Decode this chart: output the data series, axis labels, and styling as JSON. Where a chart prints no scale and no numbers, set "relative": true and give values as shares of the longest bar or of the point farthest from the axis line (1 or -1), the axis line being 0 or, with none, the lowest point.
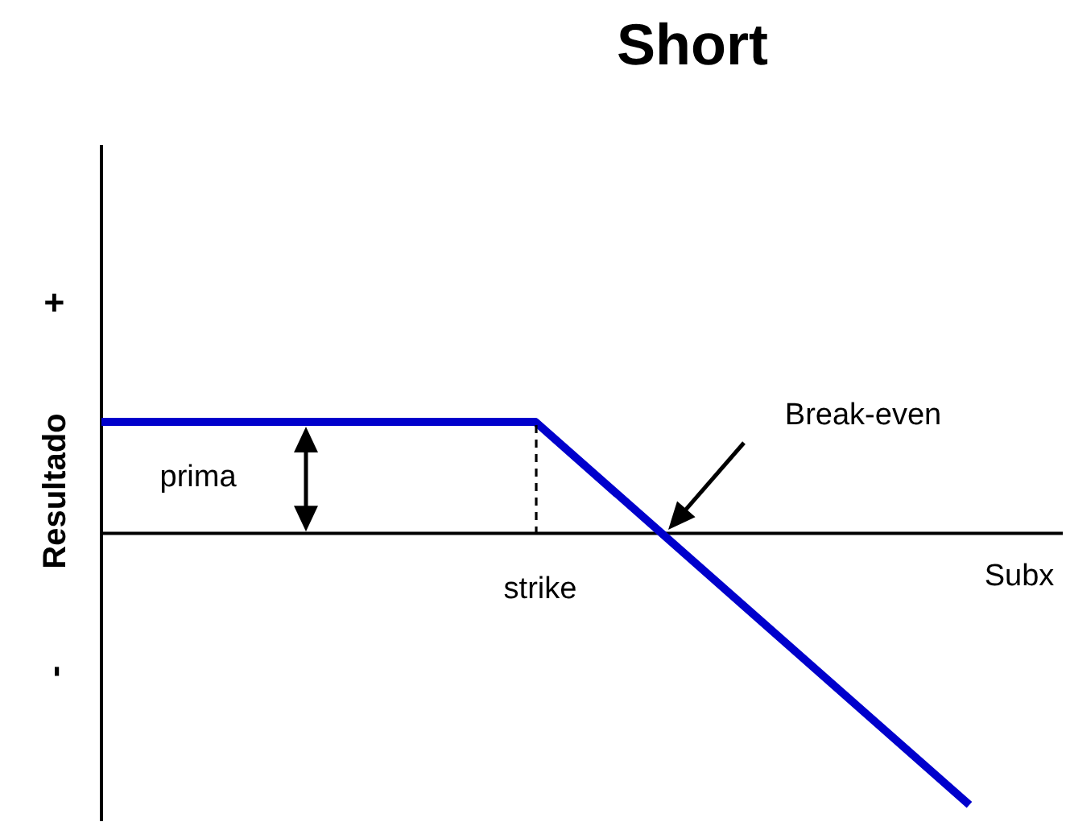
{
  "chart_data": {
    "type": "line",
    "title": "Short",
    "xlabel": "Subx",
    "ylabel": "Resultado",
    "categories": [
      null,
      null,
      null
    ],
    "values": [
      0.41,
      0.41,
      -1
    ],
    "color": "#0000cc",
    "relative": true,
    "annotations": [
      "+",
      "-",
      "prima",
      "strike",
      "Break-even"
    ]
  }
}
